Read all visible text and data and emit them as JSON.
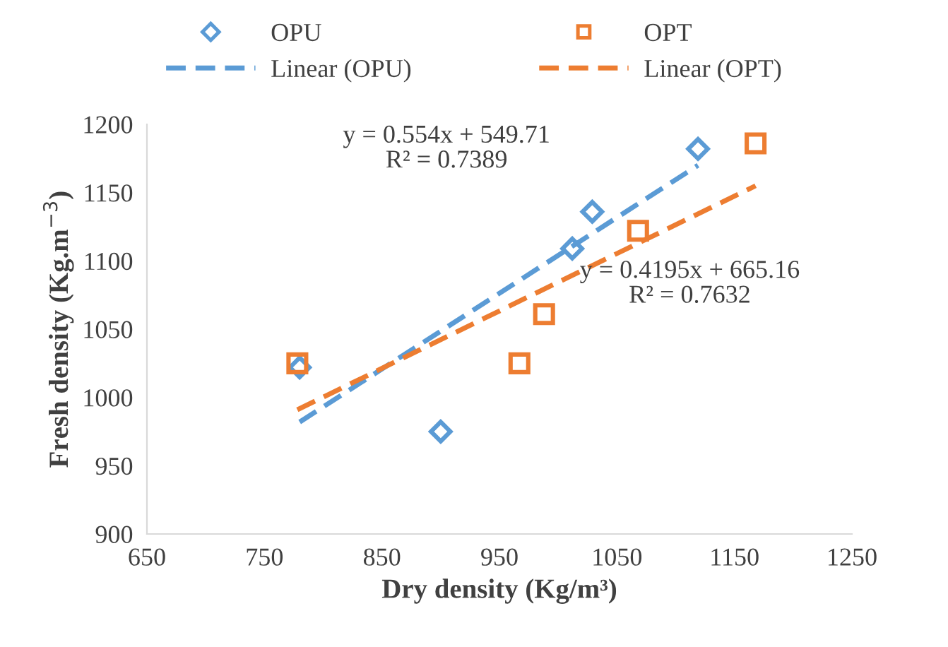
{
  "chart_data": {
    "type": "scatter",
    "xlabel": "Dry density (Kg/m³)",
    "ylabel": "Fresh density (Kg.m$^{−3}$)",
    "series": [
      {
        "name": "OPU",
        "color": "#5b9bd5",
        "marker": "diamond",
        "x": [
          780,
          900,
          1012,
          1029,
          1119
        ],
        "values": [
          1022,
          975,
          1109,
          1136,
          1182
        ]
      },
      {
        "name": "OPT",
        "color": "#ed7d31",
        "marker": "square",
        "x": [
          778,
          967,
          988,
          1068,
          1168
        ],
        "values": [
          1025,
          1025,
          1061,
          1122,
          1186
        ]
      },
      {
        "name": "Linear (OPU)",
        "type": "line",
        "color": "#5b9bd5",
        "line_style": "dashed",
        "x": [
          780,
          1119
        ],
        "values": [
          982,
          1170
        ]
      },
      {
        "name": "Linear (OPT)",
        "type": "line",
        "color": "#ed7d31",
        "line_style": "dashed",
        "x": [
          778,
          1168
        ],
        "values": [
          991,
          1155
        ]
      }
    ],
    "annotations": [
      "y = 0.554x + 549.71\nR² = 0.7389",
      "y = 0.4195x + 665.16\nR² = 0.7632"
    ],
    "xlim": [
      650,
      1250
    ],
    "xticks": [
      650,
      750,
      850,
      950,
      1050,
      1150,
      1250
    ],
    "ylim": [
      900,
      1200
    ],
    "yticks": [
      900,
      950,
      1000,
      1050,
      1100,
      1150,
      1200
    ],
    "grid": false,
    "legend": "top"
  }
}
